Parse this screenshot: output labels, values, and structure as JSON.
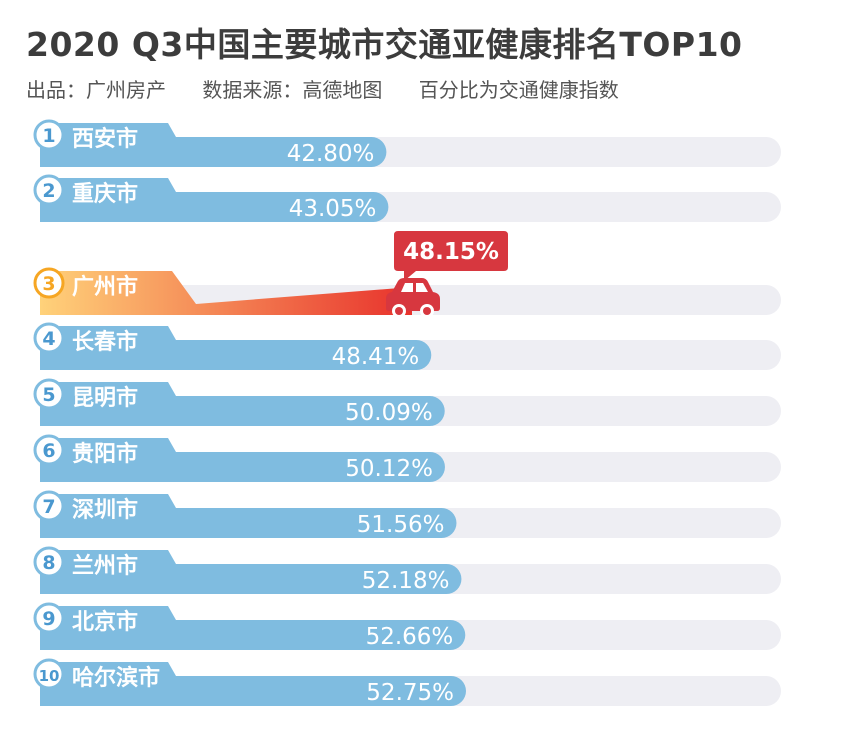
{
  "title": "2020 Q3中国主要城市交通亚健康排名TOP10",
  "subtitle": {
    "producer": "出品：广州房产",
    "source": "数据来源：高德地图",
    "note": "百分比为交通健康指数"
  },
  "colors": {
    "bar": "#7fbce0",
    "track": "#eeeef3",
    "highlight_start": "#ffd27a",
    "highlight_end": "#e8322c",
    "callout": "#d7373f",
    "badge_highlight": "#f6a623"
  },
  "chart_data": {
    "type": "bar",
    "orientation": "horizontal",
    "title": "2020 Q3中国主要城市交通亚健康排名TOP10",
    "xlim": [
      0,
      100
    ],
    "highlight": "广州市",
    "highlight_icon": "car-icon",
    "categories": [
      "西安市",
      "重庆市",
      "广州市",
      "长春市",
      "昆明市",
      "贵阳市",
      "深圳市",
      "兰州市",
      "北京市",
      "哈尔滨市"
    ],
    "ranks": [
      "1",
      "2",
      "3",
      "4",
      "5",
      "6",
      "7",
      "8",
      "9",
      "10"
    ],
    "values": [
      42.8,
      43.05,
      48.15,
      48.41,
      50.09,
      50.12,
      51.56,
      52.18,
      52.66,
      52.75
    ],
    "labels": [
      "42.80%",
      "43.05%",
      "48.15%",
      "48.41%",
      "50.09%",
      "50.12%",
      "51.56%",
      "52.18%",
      "52.66%",
      "52.75%"
    ]
  }
}
